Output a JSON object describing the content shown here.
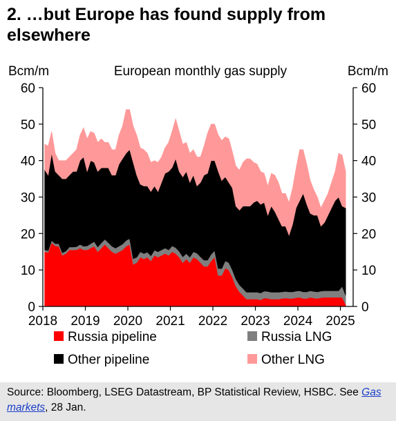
{
  "title": "2. …but Europe has found supply from elsewhere",
  "source": {
    "text": "Source: Bloomberg, LSEG Datastream, BP Statistical Review, HSBC. See ",
    "link_part1": "Gas",
    "link_part2": "markets",
    "suffix": ", 28 Jan."
  },
  "colors": {
    "russia_pipeline": "#ff0000",
    "russia_lng": "#7f7f7f",
    "other_pipeline": "#000000",
    "other_lng": "#ff9999"
  },
  "chart_data": {
    "type": "area",
    "stacked": true,
    "title": "European monthly  gas supply",
    "ylabel_left": "Bcm/m",
    "ylabel_right": "Bcm/m",
    "ylim": [
      0,
      60
    ],
    "yticks": [
      0,
      10,
      20,
      30,
      40,
      50,
      60
    ],
    "xlim": [
      2018,
      2025.3
    ],
    "xticks": [
      "2018",
      "2019",
      "2020",
      "2021",
      "2022",
      "2023",
      "2024",
      "2025"
    ],
    "x_start": "2018-01",
    "x_step": "month",
    "legend": [
      "Russia pipeline",
      "Russia LNG",
      "Other pipeline",
      "Other LNG"
    ],
    "legend_position": "bottom",
    "series": [
      {
        "name": "Russia pipeline",
        "values": [
          15.0,
          14.8,
          17.5,
          16.6,
          16.5,
          14.0,
          14.5,
          15.5,
          15.5,
          15.5,
          16.0,
          15.5,
          15.5,
          16.0,
          16.5,
          15.0,
          16.0,
          17.0,
          16.0,
          15.0,
          14.5,
          15.0,
          15.5,
          16.5,
          17.0,
          11.5,
          12.0,
          13.5,
          13.0,
          13.5,
          12.5,
          14.0,
          13.5,
          14.0,
          14.5,
          14.0,
          15.0,
          14.5,
          13.5,
          12.0,
          13.0,
          12.0,
          13.5,
          13.0,
          12.0,
          11.0,
          11.0,
          12.5,
          13.5,
          8.5,
          8.5,
          10.5,
          10.0,
          8.0,
          5.5,
          4.0,
          3.0,
          2.0,
          2.0,
          2.0,
          2.0,
          1.8,
          2.3,
          2.2,
          2.0,
          2.0,
          2.0,
          2.2,
          2.3,
          2.2,
          2.2,
          2.4,
          2.5,
          2.2,
          2.2,
          2.5,
          2.3,
          2.2,
          2.4,
          2.5,
          2.5,
          2.5,
          2.5,
          2.5,
          2.5,
          0.5
        ]
      },
      {
        "name": "Russia LNG",
        "values": [
          0.5,
          0.5,
          0.6,
          0.6,
          0.7,
          0.7,
          0.7,
          0.8,
          0.8,
          0.9,
          1.0,
          1.0,
          1.1,
          1.2,
          1.3,
          1.3,
          1.4,
          1.4,
          1.5,
          1.5,
          1.5,
          1.5,
          1.6,
          1.6,
          1.6,
          1.6,
          1.5,
          1.5,
          1.5,
          1.4,
          1.4,
          1.4,
          1.5,
          1.5,
          1.5,
          1.5,
          1.6,
          1.6,
          1.6,
          1.6,
          1.5,
          1.5,
          1.5,
          1.6,
          1.6,
          1.7,
          1.7,
          1.8,
          1.8,
          1.9,
          1.9,
          2.0,
          2.0,
          2.0,
          2.0,
          1.9,
          1.9,
          1.9,
          1.9,
          1.9,
          1.9,
          1.9,
          1.9,
          1.9,
          1.9,
          1.9,
          1.9,
          1.8,
          1.8,
          1.8,
          1.8,
          1.8,
          1.8,
          1.8,
          1.8,
          1.8,
          1.8,
          1.8,
          1.8,
          1.8,
          1.8,
          1.8,
          1.8,
          1.8,
          3.0,
          2.5
        ]
      },
      {
        "name": "Other pipeline",
        "values": [
          22.0,
          20.7,
          23.9,
          19.8,
          18.8,
          20.3,
          19.8,
          19.7,
          20.7,
          20.6,
          23.0,
          24.5,
          20.4,
          22.8,
          21.7,
          20.7,
          20.6,
          19.6,
          20.5,
          19.5,
          20.0,
          22.5,
          23.4,
          23.9,
          24.4,
          26.4,
          22.5,
          18.5,
          18.5,
          18.1,
          17.6,
          17.6,
          16.5,
          18.5,
          20.5,
          21.5,
          21.5,
          24.4,
          21.9,
          21.9,
          22.5,
          20.5,
          21.0,
          18.4,
          20.4,
          23.3,
          23.8,
          25.7,
          24.7,
          26.7,
          24.1,
          23.0,
          22.0,
          22.5,
          20.0,
          20.5,
          22.6,
          23.6,
          23.6,
          24.6,
          25.1,
          24.3,
          24.3,
          20.9,
          23.6,
          22.1,
          20.1,
          18.0,
          17.9,
          15.5,
          18.5,
          22.8,
          24.7,
          27.0,
          24.0,
          21.2,
          20.9,
          21.0,
          17.8,
          18.7,
          20.7,
          22.7,
          24.7,
          25.7,
          22.0,
          24.0
        ]
      },
      {
        "name": "Other LNG",
        "values": [
          7.0,
          8.0,
          6.0,
          5.0,
          4.0,
          5.0,
          5.0,
          5.0,
          5.0,
          6.0,
          7.0,
          8.0,
          9.0,
          8.0,
          8.0,
          8.0,
          8.0,
          7.0,
          7.0,
          7.0,
          7.0,
          8.0,
          9.0,
          12.0,
          11.0,
          10.0,
          11.0,
          10.0,
          10.0,
          9.0,
          8.0,
          7.0,
          8.0,
          7.0,
          7.0,
          8.0,
          10.0,
          11.0,
          11.0,
          9.0,
          8.0,
          8.0,
          7.0,
          8.0,
          7.0,
          8.0,
          11.0,
          10.0,
          10.0,
          10.0,
          11.0,
          11.0,
          12.0,
          10.0,
          11.0,
          11.0,
          12.0,
          13.0,
          13.0,
          11.0,
          10.0,
          9.0,
          8.0,
          8.0,
          9.0,
          10.0,
          10.0,
          9.0,
          9.0,
          9.0,
          10.0,
          11.0,
          14.0,
          12.0,
          11.0,
          9.0,
          7.0,
          5.0,
          5.0,
          6.0,
          6.0,
          7.0,
          8.0,
          12.0,
          14.0,
          10.0
        ]
      }
    ]
  }
}
